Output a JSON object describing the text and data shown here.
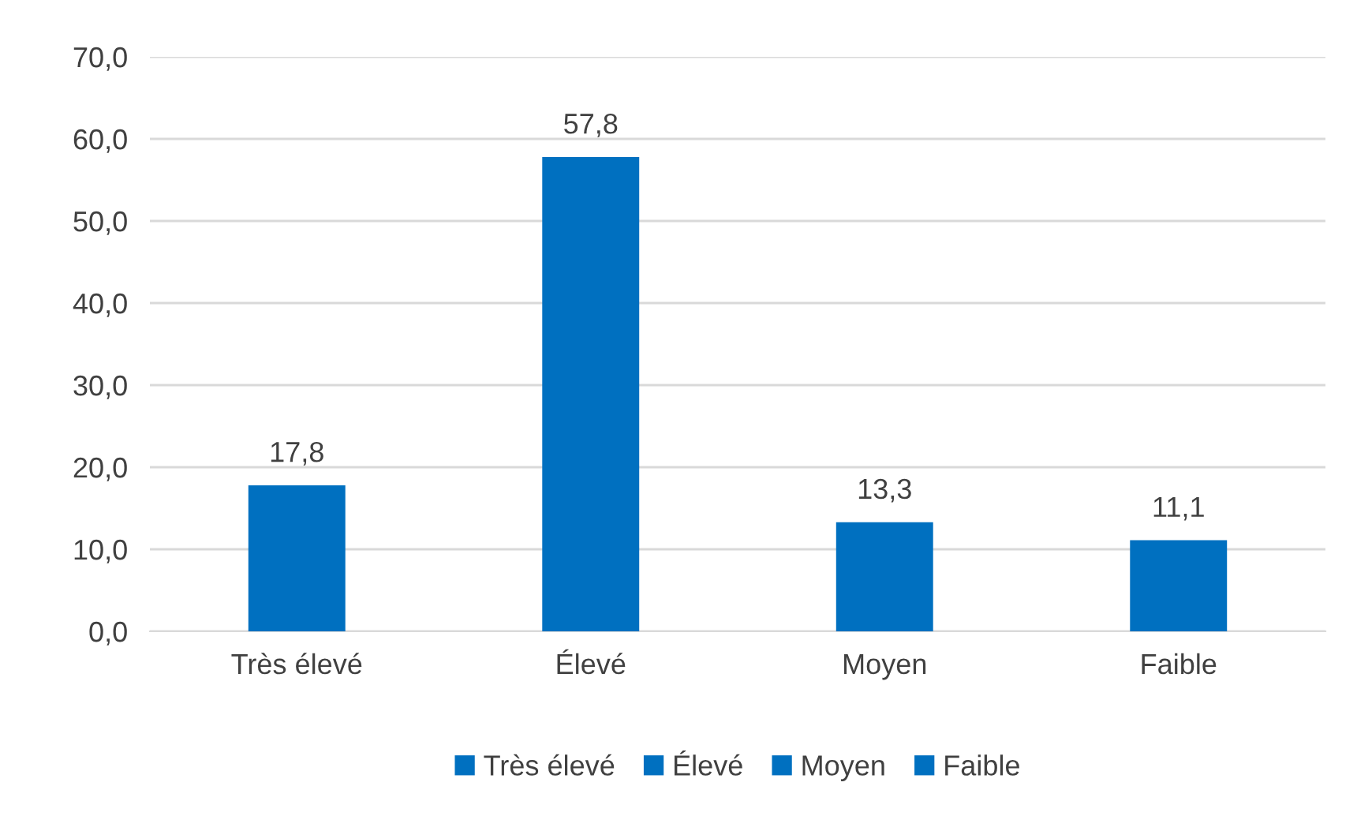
{
  "chart_data": {
    "type": "bar",
    "categories": [
      "Très élevé",
      "Élevé",
      "Moyen",
      "Faible"
    ],
    "series": [
      {
        "name": "Très élevé",
        "color": "#0070c0",
        "values": [
          17.8,
          null,
          null,
          null
        ],
        "value_labels": [
          "17,8",
          null,
          null,
          null
        ]
      },
      {
        "name": "Élevé",
        "color": "#0070c0",
        "values": [
          null,
          57.8,
          null,
          null
        ],
        "value_labels": [
          null,
          "57,8",
          null,
          null
        ]
      },
      {
        "name": "Moyen",
        "color": "#0070c0",
        "values": [
          null,
          null,
          13.3,
          null
        ],
        "value_labels": [
          null,
          null,
          "13,3",
          null
        ]
      },
      {
        "name": "Faible",
        "color": "#0070c0",
        "values": [
          null,
          null,
          null,
          11.1
        ],
        "value_labels": [
          null,
          null,
          null,
          "11,1"
        ]
      }
    ],
    "ylim": [
      0,
      70
    ],
    "yticks": [
      {
        "value": 0,
        "label": "0,0"
      },
      {
        "value": 10,
        "label": "10,0"
      },
      {
        "value": 20,
        "label": "20,0"
      },
      {
        "value": 30,
        "label": "30,0"
      },
      {
        "value": 40,
        "label": "40,0"
      },
      {
        "value": 50,
        "label": "50,0"
      },
      {
        "value": 60,
        "label": "60,0"
      },
      {
        "value": 70,
        "label": "70,0"
      }
    ],
    "grid": "y",
    "legend": "bottom"
  }
}
